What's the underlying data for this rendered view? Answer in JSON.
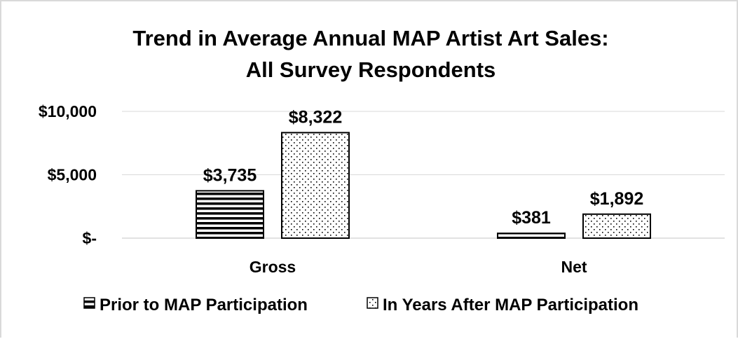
{
  "chart_data": {
    "type": "bar",
    "title_lines": [
      "Trend in Average Annual MAP Artist Art Sales:",
      "All Survey Respondents"
    ],
    "categories": [
      "Gross",
      "Net"
    ],
    "series": [
      {
        "name": "Prior to MAP Participation",
        "pattern": "horizontal-stripes",
        "values": [
          3735,
          381
        ],
        "labels": [
          "$3,735",
          "$381"
        ]
      },
      {
        "name": "In Years After MAP Participation",
        "pattern": "dots",
        "values": [
          8322,
          1892
        ],
        "labels": [
          "$8,322",
          "$1,892"
        ]
      }
    ],
    "y_ticks": [
      {
        "value": 0,
        "label": "$-"
      },
      {
        "value": 5000,
        "label": "$5,000"
      },
      {
        "value": 10000,
        "label": "$10,000"
      }
    ],
    "ylim": [
      0,
      10000
    ],
    "xlabel": "",
    "ylabel": "",
    "grid": true,
    "legend_position": "bottom",
    "colors": {
      "bar_stroke": "#000000",
      "grid": "#d9d9d9",
      "axis": "#d9d9d9",
      "background": "#ffffff"
    }
  }
}
